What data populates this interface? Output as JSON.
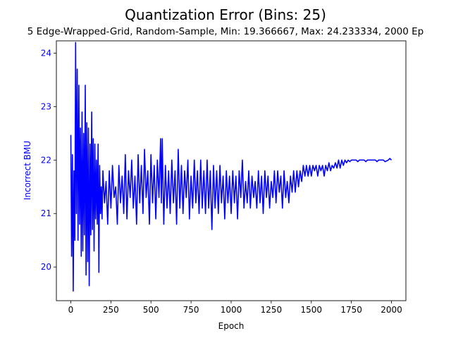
{
  "chart_data": {
    "type": "line",
    "title": "Quantization Error (Bins: 25)",
    "subtitle": "5 Edge-Wrapped-Grid, Random-Sample, Min: 19.366667, Max: 24.233334, 2000 Ep",
    "xlabel": "Epoch",
    "ylabel": "Incorrect BMU",
    "xlim": [
      -90,
      2090
    ],
    "ylim": [
      19.37,
      24.23
    ],
    "xticks": [
      0,
      250,
      500,
      750,
      1000,
      1250,
      1500,
      1750,
      2000
    ],
    "yticks": [
      20,
      21,
      22,
      23,
      24
    ],
    "color": "#0000ff",
    "ylabel_color": "#0000ff",
    "grid": false,
    "series": [
      {
        "points": [
          [
            0,
            22.47
          ],
          [
            5,
            20.2
          ],
          [
            10,
            22.1
          ],
          [
            15,
            19.55
          ],
          [
            20,
            21.8
          ],
          [
            25,
            20.5
          ],
          [
            30,
            24.2
          ],
          [
            35,
            21.0
          ],
          [
            40,
            23.7
          ],
          [
            45,
            20.5
          ],
          [
            50,
            23.4
          ],
          [
            55,
            20.8
          ],
          [
            60,
            22.6
          ],
          [
            65,
            20.2
          ],
          [
            70,
            22.9
          ],
          [
            75,
            20.3
          ],
          [
            80,
            22.5
          ],
          [
            85,
            20.6
          ],
          [
            90,
            23.4
          ],
          [
            95,
            19.85
          ],
          [
            100,
            22.7
          ],
          [
            105,
            20.1
          ],
          [
            110,
            22.6
          ],
          [
            115,
            19.65
          ],
          [
            120,
            22.3
          ],
          [
            125,
            20.6
          ],
          [
            130,
            22.9
          ],
          [
            135,
            20.7
          ],
          [
            140,
            22.4
          ],
          [
            145,
            20.3
          ],
          [
            150,
            22.3
          ],
          [
            155,
            20.9
          ],
          [
            160,
            22.0
          ],
          [
            165,
            20.8
          ],
          [
            170,
            22.3
          ],
          [
            175,
            19.9
          ],
          [
            180,
            21.9
          ],
          [
            185,
            21.0
          ],
          [
            190,
            21.5
          ],
          [
            195,
            20.9
          ],
          [
            200,
            21.8
          ],
          [
            210,
            21.2
          ],
          [
            220,
            21.6
          ],
          [
            230,
            20.8
          ],
          [
            240,
            21.8
          ],
          [
            250,
            21.1
          ],
          [
            260,
            21.9
          ],
          [
            270,
            21.3
          ],
          [
            280,
            21.5
          ],
          [
            290,
            20.8
          ],
          [
            300,
            21.9
          ],
          [
            310,
            21.2
          ],
          [
            320,
            21.7
          ],
          [
            330,
            21.0
          ],
          [
            340,
            22.1
          ],
          [
            350,
            20.9
          ],
          [
            360,
            21.8
          ],
          [
            370,
            21.3
          ],
          [
            380,
            22.0
          ],
          [
            390,
            21.1
          ],
          [
            400,
            21.7
          ],
          [
            410,
            20.8
          ],
          [
            420,
            22.1
          ],
          [
            430,
            21.2
          ],
          [
            440,
            21.9
          ],
          [
            450,
            21.0
          ],
          [
            460,
            22.2
          ],
          [
            470,
            21.3
          ],
          [
            480,
            21.8
          ],
          [
            490,
            20.8
          ],
          [
            500,
            22.1
          ],
          [
            510,
            21.2
          ],
          [
            520,
            21.9
          ],
          [
            530,
            20.9
          ],
          [
            540,
            22.0
          ],
          [
            550,
            21.3
          ],
          [
            560,
            22.4
          ],
          [
            565,
            21.2
          ],
          [
            570,
            22.4
          ],
          [
            580,
            20.8
          ],
          [
            590,
            21.9
          ],
          [
            600,
            21.1
          ],
          [
            610,
            21.8
          ],
          [
            620,
            21.0
          ],
          [
            630,
            22.0
          ],
          [
            640,
            21.2
          ],
          [
            650,
            21.8
          ],
          [
            660,
            20.8
          ],
          [
            670,
            22.2
          ],
          [
            680,
            21.1
          ],
          [
            690,
            21.9
          ],
          [
            700,
            21.0
          ],
          [
            710,
            21.8
          ],
          [
            720,
            21.3
          ],
          [
            730,
            22.0
          ],
          [
            740,
            20.9
          ],
          [
            750,
            21.7
          ],
          [
            760,
            21.1
          ],
          [
            770,
            22.0
          ],
          [
            780,
            21.2
          ],
          [
            790,
            21.8
          ],
          [
            800,
            21.0
          ],
          [
            810,
            22.0
          ],
          [
            820,
            21.1
          ],
          [
            830,
            21.8
          ],
          [
            840,
            21.0
          ],
          [
            850,
            22.0
          ],
          [
            860,
            21.1
          ],
          [
            870,
            21.8
          ],
          [
            880,
            20.7
          ],
          [
            890,
            21.9
          ],
          [
            900,
            21.1
          ],
          [
            910,
            21.8
          ],
          [
            920,
            21.0
          ],
          [
            930,
            21.9
          ],
          [
            940,
            21.2
          ],
          [
            950,
            21.7
          ],
          [
            960,
            20.9
          ],
          [
            970,
            21.8
          ],
          [
            980,
            21.2
          ],
          [
            990,
            21.7
          ],
          [
            1000,
            21.0
          ],
          [
            1010,
            21.8
          ],
          [
            1020,
            21.2
          ],
          [
            1030,
            21.7
          ],
          [
            1040,
            20.9
          ],
          [
            1050,
            21.8
          ],
          [
            1060,
            21.3
          ],
          [
            1070,
            22.0
          ],
          [
            1080,
            21.1
          ],
          [
            1090,
            21.6
          ],
          [
            1100,
            21.2
          ],
          [
            1110,
            21.8
          ],
          [
            1120,
            21.1
          ],
          [
            1130,
            21.7
          ],
          [
            1140,
            21.3
          ],
          [
            1150,
            21.6
          ],
          [
            1160,
            21.1
          ],
          [
            1170,
            21.8
          ],
          [
            1180,
            21.2
          ],
          [
            1190,
            21.7
          ],
          [
            1200,
            21.0
          ],
          [
            1210,
            21.8
          ],
          [
            1220,
            21.3
          ],
          [
            1230,
            21.7
          ],
          [
            1240,
            21.1
          ],
          [
            1250,
            21.6
          ],
          [
            1260,
            21.3
          ],
          [
            1270,
            21.8
          ],
          [
            1280,
            21.2
          ],
          [
            1290,
            21.8
          ],
          [
            1300,
            21.4
          ],
          [
            1310,
            21.7
          ],
          [
            1320,
            21.1
          ],
          [
            1330,
            21.8
          ],
          [
            1340,
            21.3
          ],
          [
            1350,
            21.6
          ],
          [
            1360,
            21.2
          ],
          [
            1370,
            21.7
          ],
          [
            1380,
            21.4
          ],
          [
            1390,
            21.8
          ],
          [
            1400,
            21.4
          ],
          [
            1410,
            21.8
          ],
          [
            1420,
            21.5
          ],
          [
            1430,
            21.8
          ],
          [
            1440,
            21.6
          ],
          [
            1450,
            21.9
          ],
          [
            1460,
            21.7
          ],
          [
            1470,
            21.9
          ],
          [
            1480,
            21.7
          ],
          [
            1490,
            21.9
          ],
          [
            1500,
            21.7
          ],
          [
            1510,
            21.9
          ],
          [
            1520,
            21.8
          ],
          [
            1530,
            21.9
          ],
          [
            1540,
            21.7
          ],
          [
            1550,
            21.9
          ],
          [
            1560,
            21.8
          ],
          [
            1570,
            21.9
          ],
          [
            1580,
            21.7
          ],
          [
            1590,
            21.9
          ],
          [
            1600,
            21.8
          ],
          [
            1610,
            21.95
          ],
          [
            1620,
            21.8
          ],
          [
            1630,
            21.9
          ],
          [
            1640,
            21.85
          ],
          [
            1650,
            21.95
          ],
          [
            1660,
            21.85
          ],
          [
            1670,
            22.0
          ],
          [
            1680,
            21.85
          ],
          [
            1690,
            22.0
          ],
          [
            1700,
            21.9
          ],
          [
            1710,
            22.0
          ],
          [
            1720,
            21.95
          ],
          [
            1730,
            22.0
          ],
          [
            1740,
            21.97
          ],
          [
            1750,
            22.0
          ],
          [
            1780,
            22.0
          ],
          [
            1790,
            21.97
          ],
          [
            1800,
            22.0
          ],
          [
            1830,
            22.0
          ],
          [
            1840,
            21.97
          ],
          [
            1850,
            22.0
          ],
          [
            1900,
            22.0
          ],
          [
            1910,
            21.97
          ],
          [
            1920,
            22.0
          ],
          [
            1950,
            22.0
          ],
          [
            1960,
            21.97
          ],
          [
            1980,
            22.0
          ],
          [
            1990,
            22.03
          ],
          [
            2000,
            22.0
          ]
        ]
      }
    ]
  }
}
